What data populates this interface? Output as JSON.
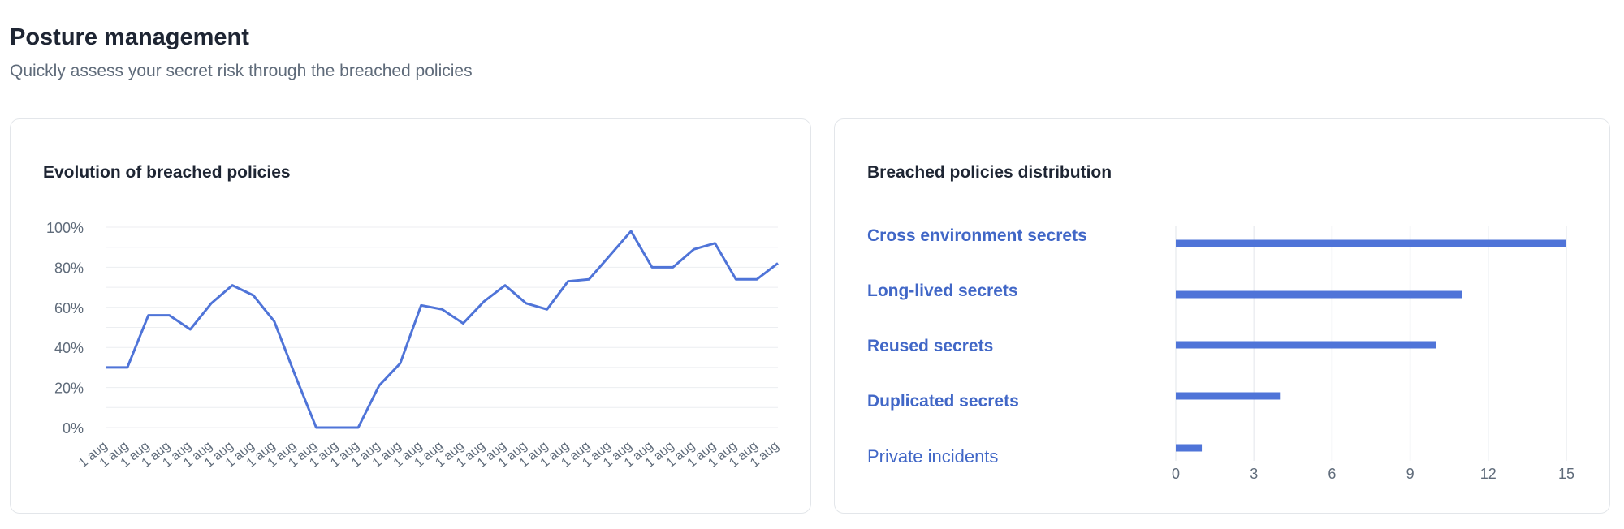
{
  "header": {
    "title": "Posture management",
    "subtitle": "Quickly assess your secret risk through the breached policies"
  },
  "colors": {
    "accent": "#4f74d8",
    "grid": "#eceef1",
    "muted": "#5f6b7a"
  },
  "left_card": {
    "title": "Evolution of breached policies"
  },
  "right_card": {
    "title": "Breached policies distribution"
  },
  "chart_data": [
    {
      "type": "line",
      "title": "Evolution of breached policies",
      "x": [
        "1 aug",
        "1 aug",
        "1 aug",
        "1 aug",
        "1 aug",
        "1 aug",
        "1 aug",
        "1 aug",
        "1 aug",
        "1 aug",
        "1 aug",
        "1 aug",
        "1 aug",
        "1 aug",
        "1 aug",
        "1 aug",
        "1 aug",
        "1 aug",
        "1 aug",
        "1 aug",
        "1 aug",
        "1 aug",
        "1 aug",
        "1 aug",
        "1 aug",
        "1 aug",
        "1 aug",
        "1 aug",
        "1 aug",
        "1 aug",
        "1 aug",
        "1 aug",
        "1 aug"
      ],
      "series": [
        {
          "values": [
            30,
            30,
            56,
            56,
            49,
            62,
            71,
            66,
            53,
            26,
            0,
            0,
            0,
            21,
            32,
            61,
            59,
            52,
            63,
            71,
            62,
            59,
            73,
            74,
            86,
            98,
            80,
            80,
            89,
            92,
            74,
            74,
            82
          ]
        }
      ],
      "yticks": [
        "0%",
        "20%",
        "40%",
        "60%",
        "80%",
        "100%"
      ],
      "ylim": [
        0,
        100
      ],
      "grid": true
    },
    {
      "type": "bar",
      "orientation": "horizontal",
      "title": "Breached policies distribution",
      "categories": [
        "Cross environment secrets",
        "Long-lived secrets",
        "Reused secrets",
        "Duplicated secrets",
        "Private incidents"
      ],
      "values": [
        15,
        11,
        10,
        4,
        1
      ],
      "xticks": [
        "0",
        "3",
        "6",
        "9",
        "12",
        "15"
      ],
      "xlim": [
        0,
        15
      ],
      "grid": true
    }
  ]
}
